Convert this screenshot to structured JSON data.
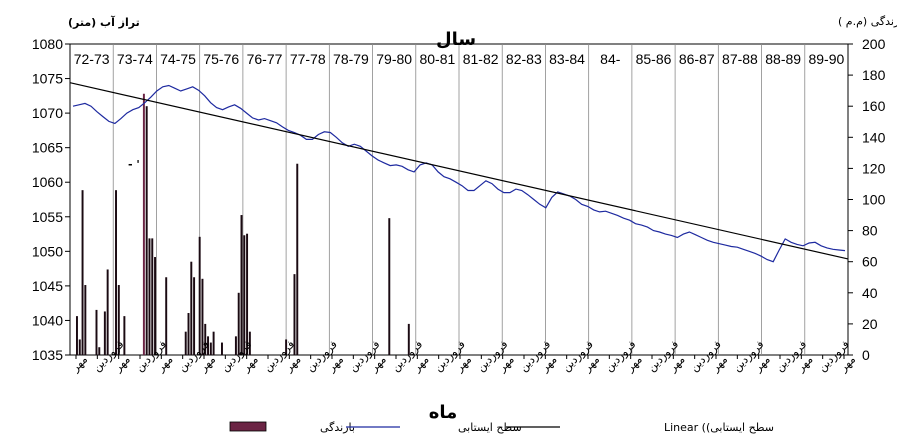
{
  "chart_data": {
    "type": "bar",
    "title": "سال",
    "xlabel": "ماه",
    "left_axis_title": "تراز آب (متر)",
    "right_axis_title": "بارندگی (م.م )",
    "ylim_left": [
      1035,
      1080
    ],
    "yticks_left": [
      "1080",
      "1075",
      "1070",
      "1065",
      "1060",
      "1055",
      "1050",
      "1045",
      "1040",
      "1035"
    ],
    "ylim_right": [
      0,
      200
    ],
    "yticks_right": [
      "200",
      "180",
      "160",
      "140",
      "120",
      "100",
      "80",
      "60",
      "40",
      "20",
      "0"
    ],
    "grid": "vertical year separators",
    "year_labels": [
      "72-73",
      "73-74",
      "74-75",
      "75-76",
      "76-77",
      "77-78",
      "78-79",
      "79-80",
      "80-81",
      "81-82",
      "82-83",
      "83-84",
      "84-",
      "85-86",
      "86-87",
      "87-88",
      "88-89",
      "89-90"
    ],
    "month_tick_labels": [
      "مهر",
      "فروردین",
      "مهر",
      "فروردین",
      "مهر",
      "فروردین",
      "مهر",
      "فروردین",
      "مهر",
      "فروردین",
      "مهر",
      "فروردین",
      "مهر",
      "فروردین",
      "مهر",
      "فروردین",
      "مهر",
      "فروردین",
      "مهر",
      "فروردین",
      "مهر",
      "فروردین",
      "مهر",
      "فروردین",
      "مهر",
      "فروردین",
      "مهر",
      "فروردین",
      "مهر",
      "فروردین",
      "مهر",
      "فروردین",
      "مهر",
      "فروردین",
      "مهر",
      "فروردین",
      "مهر"
    ],
    "legend_position": "bottom",
    "legend": {
      "rain": "بارندگی",
      "water": "سطح ایستابی",
      "trend": "سطح ایستابی)) Linear"
    },
    "stray_label": "- ' ",
    "colors": {
      "rain": "#1a0a12",
      "rain_highlight": "#6b2444",
      "water": "#1e2aa0",
      "trend": "#000000"
    },
    "series": [
      {
        "name": "بارندگی",
        "axis": "right",
        "unit": "mm",
        "values": [
          0,
          0,
          25,
          10,
          106,
          45,
          0,
          0,
          0,
          29,
          5,
          0,
          28,
          55,
          0,
          0,
          106,
          45,
          0,
          25,
          0,
          0,
          0,
          0,
          0,
          0,
          168,
          160,
          75,
          75,
          63,
          0,
          0,
          0,
          50,
          0,
          0,
          0,
          0,
          0,
          0,
          15,
          27,
          60,
          50,
          0,
          76,
          49,
          20,
          12,
          8,
          15,
          0,
          0,
          8,
          0,
          0,
          0,
          0,
          12,
          40,
          90,
          77,
          78,
          15,
          0,
          0,
          0,
          0,
          0,
          0,
          0,
          0,
          0,
          0,
          0,
          0,
          10,
          0,
          0,
          52,
          123,
          0,
          0,
          0,
          0,
          0,
          0,
          0,
          0,
          0,
          0,
          0,
          0,
          0,
          0,
          0,
          0,
          0,
          0,
          0,
          0,
          0,
          0,
          0,
          0,
          0,
          0,
          0,
          0,
          0,
          0,
          0,
          0,
          88,
          0,
          0,
          0,
          0,
          0,
          0,
          20,
          0,
          0,
          0,
          0,
          0,
          0,
          0,
          0,
          0,
          0,
          0,
          0,
          0,
          0,
          0,
          0,
          0,
          0,
          0,
          0,
          0,
          0,
          0,
          0,
          0,
          0,
          0,
          0,
          0,
          0,
          0,
          0,
          0,
          0,
          0,
          0,
          0,
          0,
          0,
          0,
          0,
          0,
          0,
          0,
          0,
          0,
          0,
          0,
          0,
          0,
          0,
          0,
          0,
          0,
          0,
          0,
          0,
          0,
          0,
          0,
          0,
          0,
          0,
          0,
          0,
          0,
          0,
          0,
          0,
          0,
          0,
          0,
          0,
          0,
          0,
          0,
          0,
          0,
          0,
          0,
          0,
          0,
          0,
          0,
          0,
          0,
          0,
          0,
          0,
          0,
          0,
          0,
          0,
          0,
          0,
          0,
          0,
          0,
          0,
          0,
          0,
          0,
          0,
          0,
          0,
          0,
          0,
          0,
          0,
          0,
          0,
          0,
          0,
          0,
          0,
          0,
          0,
          0,
          0,
          0,
          0,
          0,
          0,
          0,
          0,
          0,
          0,
          0,
          0,
          0,
          0,
          0,
          0,
          0,
          0,
          0,
          0,
          0,
          0,
          0,
          0,
          0,
          0,
          0,
          0,
          0,
          0,
          0,
          0,
          0,
          0,
          0,
          0,
          0,
          0,
          0,
          0
        ]
      },
      {
        "name": "سطح ایستابی",
        "axis": "left",
        "unit": "m",
        "values": [
          1071,
          1071.2,
          1071.4,
          1071,
          1070.2,
          1069.5,
          1068.8,
          1068.5,
          1069.2,
          1070,
          1070.5,
          1070.8,
          1071.5,
          1072.3,
          1073.2,
          1073.8,
          1074,
          1073.6,
          1073.2,
          1073.5,
          1073.8,
          1073.3,
          1072.5,
          1071.5,
          1070.8,
          1070.5,
          1070.9,
          1071.2,
          1070.7,
          1070,
          1069.3,
          1069,
          1069.2,
          1068.9,
          1068.6,
          1068,
          1067.5,
          1067.2,
          1066.8,
          1066.2,
          1066.2,
          1066.9,
          1067.3,
          1067.2,
          1066.5,
          1065.7,
          1065.2,
          1065.5,
          1065.2,
          1064.5,
          1063.8,
          1063.2,
          1062.8,
          1062.4,
          1062.5,
          1062.3,
          1061.8,
          1061.5,
          1062.5,
          1062.8,
          1062.5,
          1061.5,
          1060.8,
          1060.5,
          1060,
          1059.5,
          1058.8,
          1058.8,
          1059.5,
          1060.2,
          1059.8,
          1059,
          1058.5,
          1058.5,
          1059,
          1058.8,
          1058.2,
          1057.5,
          1056.8,
          1056.3,
          1057.8,
          1058.6,
          1058.3,
          1058,
          1057.5,
          1056.8,
          1056.5,
          1056,
          1055.7,
          1055.8,
          1055.5,
          1055.2,
          1054.8,
          1054.5,
          1054,
          1053.8,
          1053.5,
          1053,
          1052.8,
          1052.5,
          1052.3,
          1052,
          1052.5,
          1052.8,
          1052.4,
          1052,
          1051.6,
          1051.3,
          1051.1,
          1050.9,
          1050.7,
          1050.6,
          1050.3,
          1050,
          1049.7,
          1049.3,
          1048.8,
          1048.5,
          1050.2,
          1051.8,
          1051.3,
          1051,
          1050.8,
          1051.2,
          1051.3,
          1050.8,
          1050.5,
          1050.3,
          1050.2,
          1050.1
        ]
      },
      {
        "name": "Linear",
        "axis": "left",
        "x": [
          0,
          1
        ],
        "values": [
          1074.4,
          1048.9
        ]
      }
    ]
  }
}
